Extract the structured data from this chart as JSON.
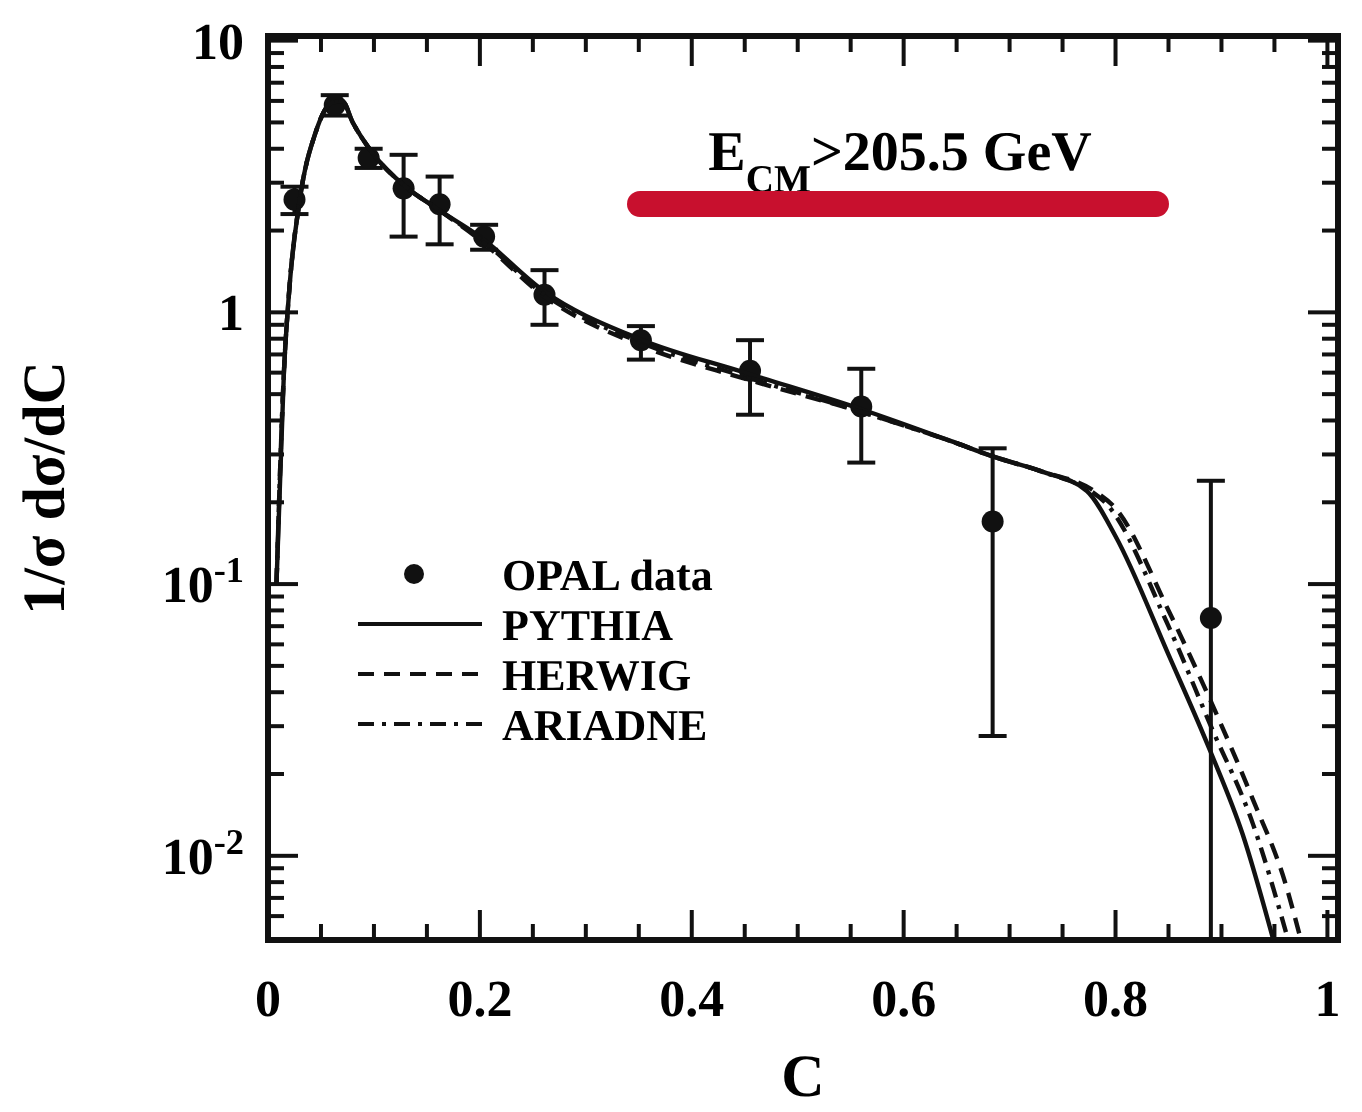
{
  "chart_data": {
    "type": "scatter",
    "xlabel": "C",
    "ylabel": "1/σ dσ/dC",
    "log": "y",
    "grid": false,
    "legend": "bottom left",
    "xlim": [
      0,
      1.01
    ],
    "ylim": [
      0.0049,
      10.4
    ],
    "xticks": [
      0,
      {
        "value": 0.05,
        "label": null
      },
      0.2,
      {
        "value": 0.1,
        "label": null
      },
      {
        "value": 0.15,
        "label": null
      },
      {
        "value": 0.25,
        "label": null
      },
      {
        "value": 0.3,
        "label": null
      },
      {
        "value": 0.35,
        "label": null
      },
      0.4,
      {
        "value": 0.45,
        "label": null
      },
      {
        "value": 0.5,
        "label": null
      },
      {
        "value": 0.55,
        "label": null
      },
      0.6,
      {
        "value": 0.65,
        "label": null
      },
      {
        "value": 0.7,
        "label": null
      },
      {
        "value": 0.75,
        "label": null
      },
      0.8,
      {
        "value": 0.85,
        "label": null
      },
      {
        "value": 0.9,
        "label": null
      },
      {
        "value": 0.95,
        "label": null
      },
      1
    ],
    "yticks": [
      {
        "value": 0.01,
        "label": "10$^{-2}$"
      },
      {
        "value": 0.1,
        "label": "10$^{-1}$"
      },
      1,
      10,
      {
        "value": 0.006,
        "label": null
      },
      {
        "value": 0.007,
        "label": null
      },
      {
        "value": 0.008,
        "label": null
      },
      {
        "value": 0.009,
        "label": null
      },
      {
        "value": 0.02,
        "label": null
      },
      {
        "value": 0.03,
        "label": null
      },
      {
        "value": 0.04,
        "label": null
      },
      {
        "value": 0.05,
        "label": null
      },
      {
        "value": 0.06,
        "label": null
      },
      {
        "value": 0.07,
        "label": null
      },
      {
        "value": 0.08,
        "label": null
      },
      {
        "value": 0.09,
        "label": null
      },
      {
        "value": 0.2,
        "label": null
      },
      {
        "value": 0.3,
        "label": null
      },
      {
        "value": 0.4,
        "label": null
      },
      {
        "value": 0.5,
        "label": null
      },
      {
        "value": 0.6,
        "label": null
      },
      {
        "value": 0.7,
        "label": null
      },
      {
        "value": 0.8,
        "label": null
      },
      {
        "value": 0.9,
        "label": null
      },
      {
        "value": 2,
        "label": null
      },
      {
        "value": 3,
        "label": null
      },
      {
        "value": 4,
        "label": null
      },
      {
        "value": 5,
        "label": null
      },
      {
        "value": 6,
        "label": null
      },
      {
        "value": 7,
        "label": null
      },
      {
        "value": 8,
        "label": null
      },
      {
        "value": 9,
        "label": null
      }
    ],
    "annotations": [
      "E$_{CM}$>205.5 GeV"
    ],
    "series": [
      {
        "name": "OPAL data",
        "marker": "circle",
        "color": "#111111",
        "x": [
          0.025,
          0.063,
          0.095,
          0.128,
          0.162,
          0.204,
          0.261,
          0.352,
          0.455,
          0.56,
          0.684,
          0.89
        ],
        "values": [
          2.6,
          5.8,
          3.7,
          2.86,
          2.5,
          1.9,
          1.16,
          0.79,
          0.61,
          0.45,
          0.17,
          0.075
        ],
        "errors": [
          0.3,
          0.5,
          0.3,
          [
            1.9,
            3.8
          ],
          [
            1.78,
            3.16
          ],
          [
            1.7,
            2.1
          ],
          [
            0.9,
            1.43
          ],
          [
            0.67,
            0.89
          ],
          [
            0.42,
            0.79
          ],
          [
            0.28,
            0.62
          ],
          [
            0.0276,
            0.316
          ],
          [
            0.0049,
            0.24
          ]
        ]
      },
      {
        "name": "PYTHIA",
        "type": "line",
        "line_style": "solid",
        "color": "#111111",
        "x": [
          0.008,
          0.015,
          0.02,
          0.03,
          0.045,
          0.06,
          0.07,
          0.08,
          0.1,
          0.13,
          0.16,
          0.2,
          0.26,
          0.35,
          0.45,
          0.56,
          0.65,
          0.684,
          0.73,
          0.773,
          0.8,
          0.85,
          0.89,
          0.92,
          0.949
        ],
        "values": [
          0.1,
          0.6,
          1.2,
          2.6,
          4.6,
          5.9,
          6.0,
          5.0,
          3.8,
          2.9,
          2.4,
          1.9,
          1.2,
          0.8,
          0.6,
          0.44,
          0.33,
          0.295,
          0.26,
          0.22,
          0.15,
          0.055,
          0.024,
          0.012,
          0.0049
        ]
      },
      {
        "name": "HERWIG",
        "type": "line",
        "line_style": "dashed",
        "color": "#111111",
        "x": [
          0.008,
          0.015,
          0.02,
          0.03,
          0.045,
          0.06,
          0.07,
          0.08,
          0.1,
          0.13,
          0.16,
          0.2,
          0.26,
          0.35,
          0.45,
          0.56,
          0.65,
          0.684,
          0.73,
          0.78,
          0.8,
          0.85,
          0.89,
          0.93,
          0.96,
          0.975
        ],
        "values": [
          0.1,
          0.6,
          1.2,
          2.6,
          4.6,
          5.9,
          6.0,
          5.0,
          3.8,
          2.9,
          2.4,
          1.85,
          1.15,
          0.76,
          0.57,
          0.43,
          0.33,
          0.295,
          0.26,
          0.22,
          0.19,
          0.08,
          0.037,
          0.016,
          0.008,
          0.0049
        ]
      },
      {
        "name": "ARIADNE",
        "type": "line",
        "line_style": "dashdot",
        "color": "#111111",
        "x": [
          0.008,
          0.015,
          0.02,
          0.03,
          0.045,
          0.06,
          0.07,
          0.08,
          0.1,
          0.13,
          0.16,
          0.2,
          0.26,
          0.35,
          0.45,
          0.56,
          0.65,
          0.684,
          0.73,
          0.79,
          0.85,
          0.89,
          0.93,
          0.963
        ],
        "values": [
          0.1,
          0.6,
          1.2,
          2.6,
          4.6,
          5.9,
          6.0,
          5.0,
          3.8,
          2.9,
          2.4,
          1.87,
          1.17,
          0.78,
          0.58,
          0.43,
          0.33,
          0.295,
          0.26,
          0.2,
          0.07,
          0.03,
          0.013,
          0.0049
        ]
      }
    ]
  }
}
